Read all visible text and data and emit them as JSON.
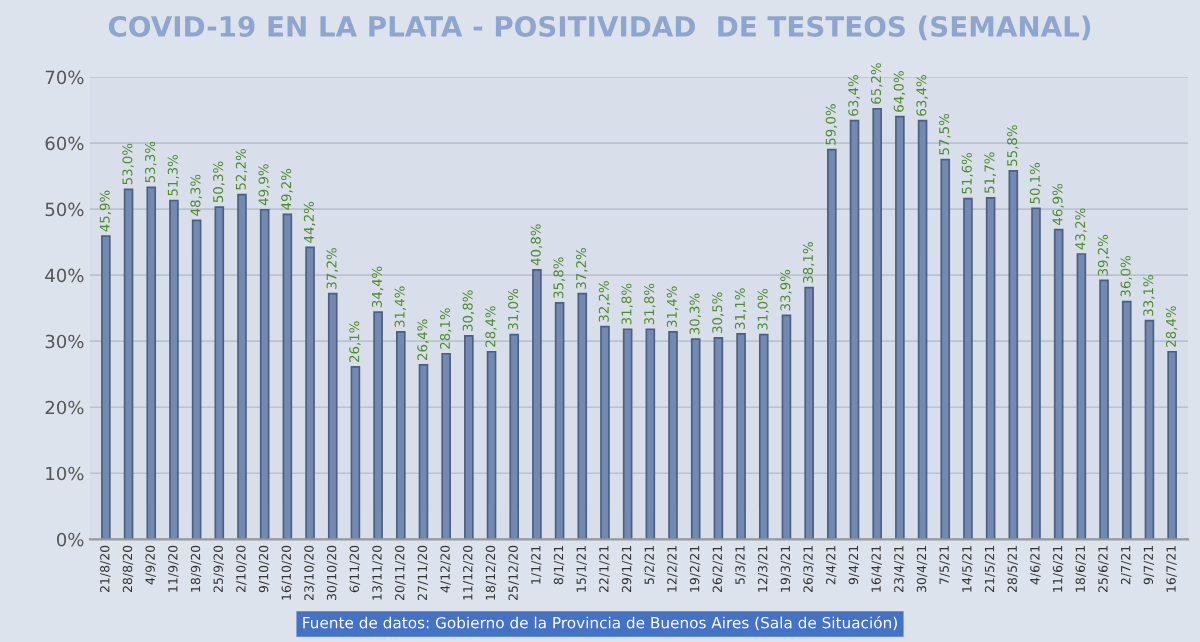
{
  "chart_data": {
    "type": "bar",
    "title": "COVID-19 EN LA PLATA - POSITIVIDAD  DE TESTEOS (SEMANAL)",
    "categories": [
      "21/8/20",
      "28/8/20",
      "4/9/20",
      "11/9/20",
      "18/9/20",
      "25/9/20",
      "2/10/20",
      "9/10/20",
      "16/10/20",
      "23/10/20",
      "30/10/20",
      "6/11/20",
      "13/11/20",
      "20/11/20",
      "27/11/20",
      "4/12/20",
      "11/12/20",
      "18/12/20",
      "25/12/20",
      "1/1/21",
      "8/1/21",
      "15/1/21",
      "22/1/21",
      "29/1/21",
      "5/2/21",
      "12/2/21",
      "19/2/21",
      "26/2/21",
      "5/3/21",
      "12/3/21",
      "19/3/21",
      "26/3/21",
      "2/4/21",
      "9/4/21",
      "16/4/21",
      "23/4/21",
      "30/4/21",
      "7/5/21",
      "14/5/21",
      "21/5/21",
      "28/5/21",
      "4/6/21",
      "11/6/21",
      "18/6/21",
      "25/6/21",
      "2/7/21",
      "9/7/21",
      "16/7/21"
    ],
    "values": [
      45.9,
      53.0,
      53.3,
      51.3,
      48.3,
      50.3,
      52.2,
      49.9,
      49.2,
      44.2,
      37.2,
      26.1,
      34.4,
      31.4,
      26.4,
      28.1,
      30.8,
      28.4,
      31.0,
      40.8,
      35.8,
      37.2,
      32.2,
      31.8,
      31.8,
      31.4,
      30.3,
      30.5,
      31.1,
      31.0,
      33.9,
      38.1,
      59.0,
      63.4,
      65.2,
      64.0,
      63.4,
      57.5,
      51.6,
      51.7,
      55.8,
      50.1,
      46.9,
      43.2,
      39.2,
      36.0,
      33.1,
      28.4
    ],
    "value_labels": [
      "45,9%",
      "53,0%",
      "53,3%",
      "51,3%",
      "48,3%",
      "50,3%",
      "52,2%",
      "49,9%",
      "49,2%",
      "44,2%",
      "37,2%",
      "26,1%",
      "34,4%",
      "31,4%",
      "26,4%",
      "28,1%",
      "30,8%",
      "28,4%",
      "31,0%",
      "40,8%",
      "35,8%",
      "37,2%",
      "32,2%",
      "31,8%",
      "31,8%",
      "31,4%",
      "30,3%",
      "30,5%",
      "31,1%",
      "31,0%",
      "33,9%",
      "38,1%",
      "59,0%",
      "63,4%",
      "65,2%",
      "64,0%",
      "63,4%",
      "57,5%",
      "51,6%",
      "51,7%",
      "55,8%",
      "50,1%",
      "46,9%",
      "43,2%",
      "39,2%",
      "36,0%",
      "33,1%",
      "28,4%"
    ],
    "color": "#7389b0",
    "ylim": [
      0,
      70
    ],
    "yticks": [
      {
        "value": 0,
        "label": "0%"
      },
      {
        "value": 10,
        "label": "10%"
      },
      {
        "value": 20,
        "label": "20%"
      },
      {
        "value": 30,
        "label": "30%"
      },
      {
        "value": 40,
        "label": "40%"
      },
      {
        "value": 50,
        "label": "50%"
      },
      {
        "value": 60,
        "label": "60%"
      },
      {
        "value": 70,
        "label": "70%"
      }
    ],
    "grid": "y",
    "annotations": [
      "Fuente de datos: Gobierno de la Provincia de Buenos Aires (Sala de Situación)"
    ]
  }
}
